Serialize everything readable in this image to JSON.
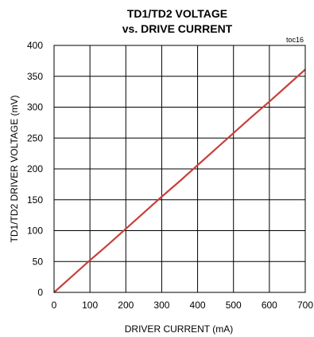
{
  "chart_data": {
    "type": "line",
    "title_lines": [
      "TD1/TD2 VOLTAGE",
      "vs. DRIVE CURRENT"
    ],
    "figure_id": "toc16",
    "xlabel": "DRIVER CURRENT (mA)",
    "ylabel": "TD1/TD2 DRIVER VOLTAGE (mV)",
    "xlim": [
      0,
      700
    ],
    "ylim": [
      0,
      400
    ],
    "x_ticks": [
      0,
      100,
      200,
      300,
      400,
      500,
      600,
      700
    ],
    "y_ticks": [
      0,
      50,
      100,
      150,
      200,
      250,
      300,
      350,
      400
    ],
    "grid": true,
    "series": [
      {
        "color": "#c8403c",
        "x": [
          0,
          50,
          100,
          150,
          200,
          250,
          300,
          350,
          400,
          450,
          500,
          550,
          600,
          650,
          700
        ],
        "y": [
          0,
          26,
          52,
          77,
          103,
          129,
          155,
          180,
          206,
          232,
          258,
          284,
          309,
          335,
          361
        ]
      }
    ]
  }
}
